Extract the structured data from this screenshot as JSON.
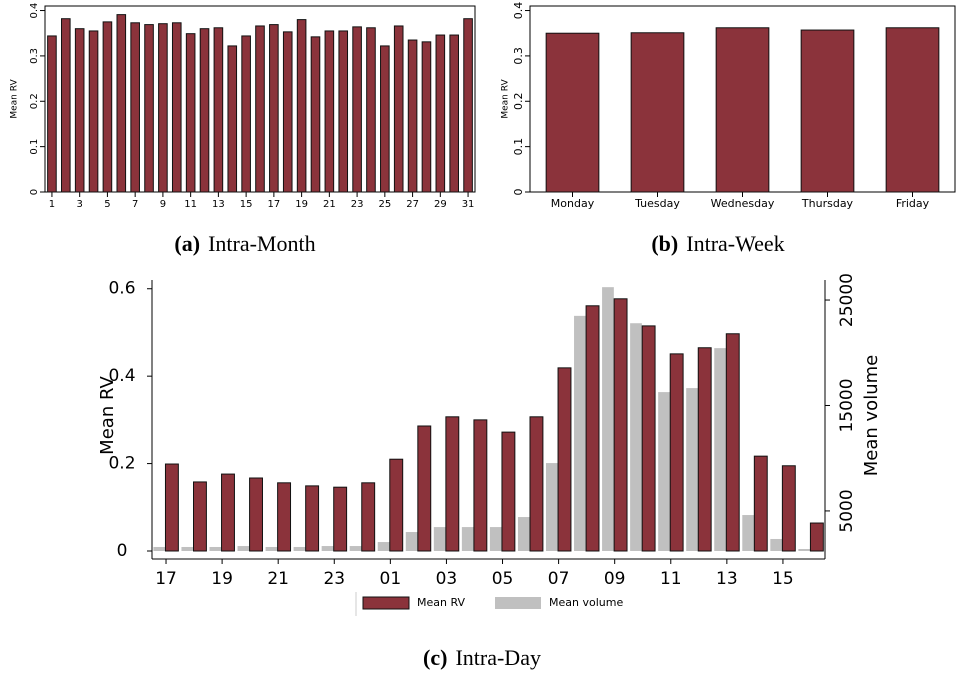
{
  "chart_data": [
    {
      "type": "bar",
      "caption_label": "(a)",
      "caption": "Intra-Month",
      "ylabel": "Mean RV",
      "categories": [
        "1",
        null,
        "3",
        null,
        "5",
        null,
        "7",
        null,
        "9",
        null,
        "11",
        null,
        "13",
        null,
        "15",
        null,
        "17",
        null,
        "19",
        null,
        "21",
        null,
        "23",
        null,
        "25",
        null,
        "27",
        null,
        "29",
        null,
        "31"
      ],
      "series": [
        {
          "name": "Mean RV",
          "color": "#8b333b",
          "values": [
            0.344,
            0.382,
            0.36,
            0.355,
            0.375,
            0.391,
            0.373,
            0.369,
            0.371,
            0.373,
            0.349,
            0.36,
            0.362,
            0.322,
            0.344,
            0.366,
            0.369,
            0.353,
            0.38,
            0.342,
            0.355,
            0.355,
            0.364,
            0.362,
            0.322,
            0.366,
            0.335,
            0.331,
            0.346,
            0.346,
            0.382
          ]
        }
      ],
      "ylim": [
        0,
        0.41
      ],
      "yticks": [
        0,
        0.1,
        0.2,
        0.3,
        0.4
      ],
      "grid": false
    },
    {
      "type": "bar",
      "caption_label": "(b)",
      "caption": "Intra-Week",
      "ylabel": "Mean RV",
      "categories": [
        "Monday",
        "Tuesday",
        "Wednesday",
        "Thursday",
        "Friday"
      ],
      "series": [
        {
          "name": "Mean RV",
          "color": "#8b333b",
          "values": [
            0.35,
            0.351,
            0.362,
            0.357,
            0.362
          ]
        }
      ],
      "ylim": [
        0,
        0.41
      ],
      "yticks": [
        0,
        0.1,
        0.2,
        0.3,
        0.4
      ],
      "grid": false
    },
    {
      "type": "bar",
      "caption_label": "(c)",
      "caption": "Intra-Day",
      "ylabel": "Mean RV",
      "y2label": "Mean volume",
      "categories": [
        "17",
        null,
        "19",
        null,
        "21",
        null,
        "23",
        null,
        "01",
        null,
        "03",
        null,
        "05",
        null,
        "07",
        null,
        "09",
        null,
        "11",
        null,
        "13",
        null,
        "15",
        null
      ],
      "series": [
        {
          "name": "Mean RV",
          "color": "#8b333b",
          "values": [
            0.199,
            0.158,
            0.176,
            0.167,
            0.156,
            0.149,
            0.146,
            0.156,
            0.21,
            0.286,
            0.307,
            0.3,
            0.272,
            0.307,
            0.419,
            0.561,
            0.577,
            0.515,
            0.451,
            0.465,
            0.497,
            0.217,
            0.195,
            0.064
          ]
        },
        {
          "name": "Mean volume",
          "color": "#c0c0c0",
          "axis": "y2",
          "values": [
            1580,
            1580,
            1580,
            1670,
            1580,
            1580,
            1670,
            1670,
            2050,
            3000,
            3470,
            3470,
            3470,
            4420,
            9540,
            23500,
            26220,
            22800,
            16270,
            16650,
            20440,
            4610,
            2340,
            1390
          ]
        }
      ],
      "ylim": [
        0,
        0.62
      ],
      "yticks": [
        0,
        0.2,
        0.4,
        0.6
      ],
      "y2lim": [
        1200,
        26900
      ],
      "y2ticks": [
        5000,
        15000,
        25000
      ],
      "legend": "bottom",
      "grid": false
    }
  ]
}
